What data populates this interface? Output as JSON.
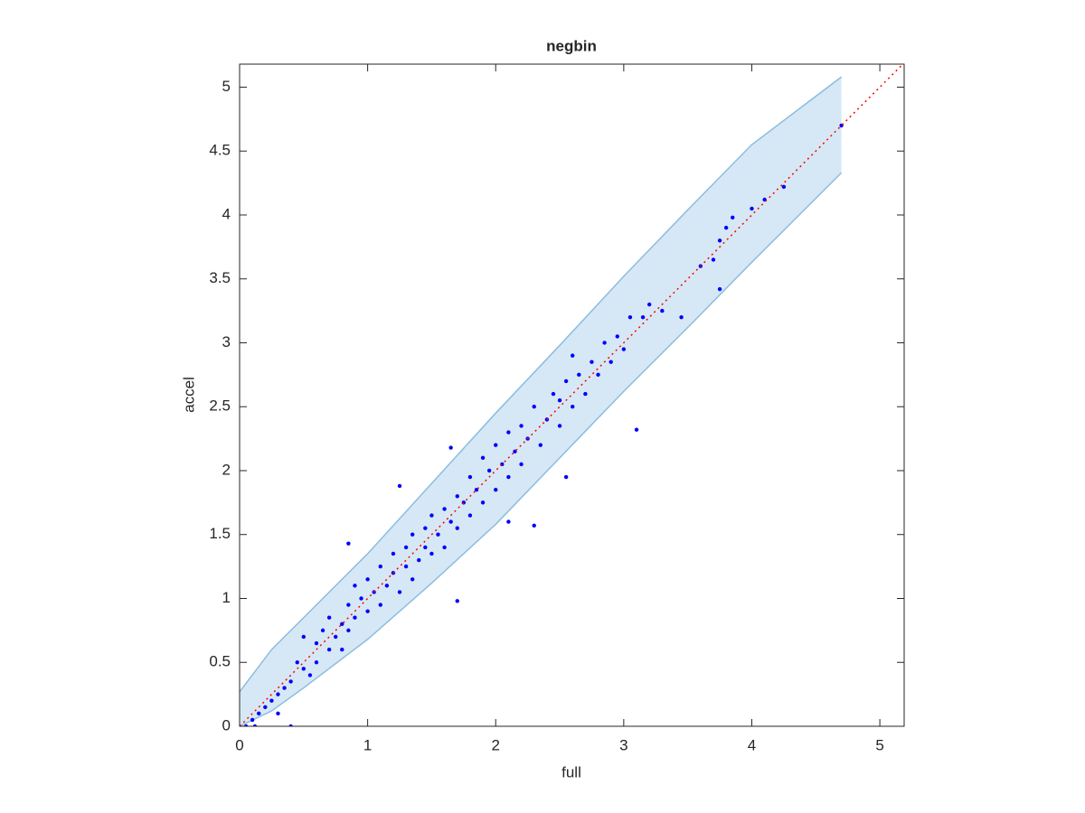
{
  "chart_data": {
    "type": "scatter",
    "title": "negbin",
    "x_label": "full",
    "y_label": "accel",
    "xlim": [
      0,
      5.19
    ],
    "ylim": [
      0,
      5.18
    ],
    "xticks": [
      0,
      1,
      2,
      3,
      4,
      5
    ],
    "yticks": [
      0,
      0.5,
      1,
      1.5,
      2,
      2.5,
      3,
      3.5,
      4,
      4.5,
      5
    ],
    "color": "#0000ff",
    "band": {
      "x": [
        0,
        0.25,
        0.5,
        1,
        1.5,
        2,
        2.5,
        3,
        3.5,
        4,
        4.7
      ],
      "upper": [
        0.27,
        0.6,
        0.85,
        1.35,
        1.9,
        2.45,
        2.98,
        3.52,
        4.04,
        4.55,
        5.08
      ],
      "lower": [
        0,
        0.12,
        0.3,
        0.68,
        1.12,
        1.58,
        2.1,
        2.62,
        3.12,
        3.63,
        4.33
      ],
      "color": "#d6e8f5",
      "edge_color": "#8bbde0"
    },
    "diagonal": {
      "x": [
        0,
        5.19
      ],
      "y": [
        0,
        5.19
      ],
      "color": "#ff0000"
    },
    "x": [
      0.05,
      0.1,
      0.15,
      0.2,
      0.25,
      0.3,
      0.12,
      0.3,
      0.35,
      0.4,
      0.4,
      0.45,
      0.5,
      0.5,
      0.55,
      0.6,
      0.6,
      0.65,
      0.7,
      0.7,
      0.75,
      0.8,
      0.8,
      0.85,
      0.85,
      0.9,
      0.9,
      0.95,
      1.0,
      1.0,
      1.05,
      1.1,
      1.1,
      1.15,
      1.2,
      1.2,
      1.25,
      1.3,
      1.3,
      1.35,
      1.35,
      1.4,
      1.45,
      1.45,
      1.5,
      1.5,
      1.55,
      1.6,
      1.6,
      1.65,
      1.7,
      1.7,
      1.75,
      1.8,
      1.8,
      1.85,
      1.9,
      1.9,
      1.95,
      2.0,
      2.0,
      2.05,
      2.1,
      2.1,
      2.15,
      2.2,
      2.2,
      2.25,
      2.3,
      2.35,
      2.4,
      2.45,
      2.5,
      2.5,
      2.55,
      2.6,
      2.65,
      2.7,
      2.75,
      2.8,
      2.85,
      2.9,
      2.95,
      3.0,
      3.05,
      3.1,
      3.15,
      3.2,
      3.3,
      3.45,
      3.6,
      3.7,
      3.75,
      3.8,
      3.75,
      3.85,
      4.0,
      4.1,
      4.25,
      4.7,
      1.7,
      0.85,
      1.65,
      2.1,
      2.3,
      2.55,
      2.6,
      1.25
    ],
    "y": [
      0,
      0.05,
      0.1,
      0.15,
      0.2,
      0.25,
      0,
      0.1,
      0.3,
      0.35,
      0,
      0.5,
      0.45,
      0.7,
      0.4,
      0.65,
      0.5,
      0.75,
      0.6,
      0.85,
      0.7,
      0.8,
      0.6,
      0.95,
      0.75,
      0.85,
      1.1,
      1.0,
      0.9,
      1.15,
      1.05,
      1.25,
      0.95,
      1.1,
      1.35,
      1.2,
      1.05,
      1.4,
      1.25,
      1.5,
      1.15,
      1.3,
      1.55,
      1.4,
      1.35,
      1.65,
      1.5,
      1.7,
      1.4,
      1.6,
      1.8,
      1.55,
      1.75,
      1.95,
      1.65,
      1.85,
      1.75,
      2.1,
      2.0,
      1.85,
      2.2,
      2.05,
      2.3,
      1.95,
      2.15,
      2.35,
      2.05,
      2.25,
      2.5,
      2.2,
      2.4,
      2.6,
      2.35,
      2.55,
      2.7,
      2.5,
      2.75,
      2.6,
      2.85,
      2.75,
      3.0,
      2.85,
      3.05,
      2.95,
      3.2,
      2.32,
      3.2,
      3.3,
      3.25,
      3.2,
      3.6,
      3.65,
      3.8,
      3.9,
      3.42,
      3.98,
      4.05,
      4.12,
      4.22,
      4.7,
      0.98,
      1.43,
      2.18,
      1.6,
      1.57,
      1.95,
      2.9,
      1.88
    ]
  }
}
